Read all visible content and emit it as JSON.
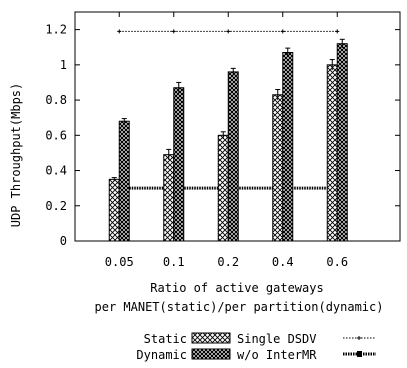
{
  "chart_data": {
    "type": "bar",
    "categories": [
      "0.05",
      "0.1",
      "0.2",
      "0.4",
      "0.6"
    ],
    "series": [
      {
        "name": "Static",
        "values": [
          0.35,
          0.49,
          0.6,
          0.83,
          1.0
        ],
        "errors": [
          0.01,
          0.03,
          0.02,
          0.03,
          0.03
        ]
      },
      {
        "name": "Dynamic",
        "values": [
          0.68,
          0.87,
          0.96,
          1.07,
          1.12
        ],
        "errors": [
          0.015,
          0.03,
          0.02,
          0.025,
          0.025
        ]
      }
    ],
    "reference_lines": [
      {
        "name": "Single DSDV",
        "value": 1.19
      },
      {
        "name": "w/o InterMR",
        "value": 0.3
      }
    ],
    "ylim": [
      0,
      1.3
    ],
    "yticks": [
      "0",
      "0.2",
      "0.4",
      "0.6",
      "0.8",
      "1",
      "1.2"
    ],
    "ylabel": "UDP Throughput(Mbps)",
    "xlabel_line1": "Ratio of active gateways",
    "xlabel_line2": "per MANET(static)/per partition(dynamic)",
    "legend": {
      "placement": "bottom",
      "rows": [
        {
          "bar_label": "Static",
          "line_label": "Single DSDV"
        },
        {
          "bar_label": "Dynamic",
          "line_label": "w/o InterMR"
        }
      ]
    }
  }
}
